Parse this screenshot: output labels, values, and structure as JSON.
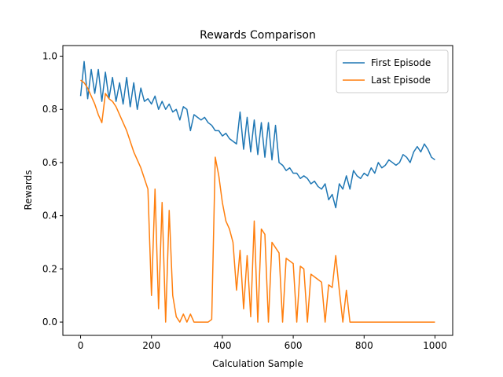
{
  "chart_data": {
    "type": "line",
    "title": "Rewards Comparison",
    "x_label": "Calculation Sample",
    "y_label": "Rewards",
    "x": [
      0,
      10,
      20,
      30,
      40,
      50,
      60,
      70,
      80,
      90,
      100,
      110,
      120,
      130,
      140,
      150,
      160,
      170,
      180,
      190,
      200,
      210,
      220,
      230,
      240,
      250,
      260,
      270,
      280,
      290,
      300,
      310,
      320,
      330,
      340,
      350,
      360,
      370,
      380,
      390,
      400,
      410,
      420,
      430,
      440,
      450,
      460,
      470,
      480,
      490,
      500,
      510,
      520,
      530,
      540,
      550,
      560,
      570,
      580,
      590,
      600,
      610,
      620,
      630,
      640,
      650,
      660,
      670,
      680,
      690,
      700,
      710,
      720,
      730,
      740,
      750,
      760,
      770,
      780,
      790,
      800,
      810,
      820,
      830,
      840,
      850,
      860,
      870,
      880,
      890,
      900,
      910,
      920,
      930,
      940,
      950,
      960,
      970,
      980,
      990,
      1000
    ],
    "series": [
      {
        "name": "First Episode",
        "color": "#1f77b4",
        "values": [
          0.85,
          0.98,
          0.84,
          0.95,
          0.86,
          0.95,
          0.83,
          0.94,
          0.84,
          0.92,
          0.83,
          0.9,
          0.82,
          0.92,
          0.81,
          0.9,
          0.8,
          0.88,
          0.83,
          0.84,
          0.82,
          0.85,
          0.8,
          0.83,
          0.8,
          0.82,
          0.79,
          0.8,
          0.76,
          0.81,
          0.8,
          0.72,
          0.78,
          0.77,
          0.76,
          0.77,
          0.75,
          0.74,
          0.72,
          0.72,
          0.7,
          0.71,
          0.69,
          0.68,
          0.67,
          0.79,
          0.65,
          0.77,
          0.64,
          0.76,
          0.63,
          0.75,
          0.62,
          0.75,
          0.61,
          0.74,
          0.6,
          0.59,
          0.57,
          0.58,
          0.56,
          0.56,
          0.54,
          0.55,
          0.54,
          0.52,
          0.53,
          0.51,
          0.5,
          0.52,
          0.46,
          0.48,
          0.43,
          0.52,
          0.5,
          0.55,
          0.5,
          0.57,
          0.55,
          0.54,
          0.56,
          0.55,
          0.58,
          0.56,
          0.6,
          0.58,
          0.59,
          0.61,
          0.6,
          0.59,
          0.6,
          0.63,
          0.62,
          0.6,
          0.64,
          0.66,
          0.64,
          0.67,
          0.65,
          0.62,
          0.61
        ]
      },
      {
        "name": "Last Episode",
        "color": "#ff7f0e",
        "values": [
          0.91,
          0.9,
          0.88,
          0.85,
          0.82,
          0.78,
          0.75,
          0.86,
          0.84,
          0.83,
          0.81,
          0.78,
          0.75,
          0.72,
          0.68,
          0.64,
          0.61,
          0.58,
          0.54,
          0.5,
          0.1,
          0.5,
          0.05,
          0.45,
          0,
          0.42,
          0.1,
          0.02,
          0,
          0.03,
          0,
          0.03,
          0,
          0,
          0,
          0,
          0,
          0.01,
          0.62,
          0.55,
          0.45,
          0.38,
          0.35,
          0.3,
          0.12,
          0.27,
          0.05,
          0.25,
          0.02,
          0.38,
          0,
          0.35,
          0.33,
          0,
          0.3,
          0.28,
          0.26,
          0,
          0.24,
          0.23,
          0.22,
          0,
          0.21,
          0.2,
          0,
          0.18,
          0.17,
          0.16,
          0.15,
          0,
          0.14,
          0.13,
          0.25,
          0.12,
          0,
          0.12,
          0,
          0,
          0,
          0,
          0,
          0,
          0,
          0,
          0,
          0,
          0,
          0,
          0,
          0,
          0,
          0,
          0,
          0,
          0,
          0,
          0,
          0,
          0,
          0,
          0
        ]
      }
    ],
    "xlim": [
      -50,
      1050
    ],
    "ylim": [
      -0.05,
      1.04
    ],
    "xticks": [
      0,
      200,
      400,
      600,
      800,
      1000
    ],
    "yticks": [
      {
        "value": 0,
        "label": "0.0"
      },
      0.2,
      0.4,
      0.6,
      0.8,
      {
        "value": 1,
        "label": "1.0"
      }
    ],
    "legend": "upper right"
  }
}
